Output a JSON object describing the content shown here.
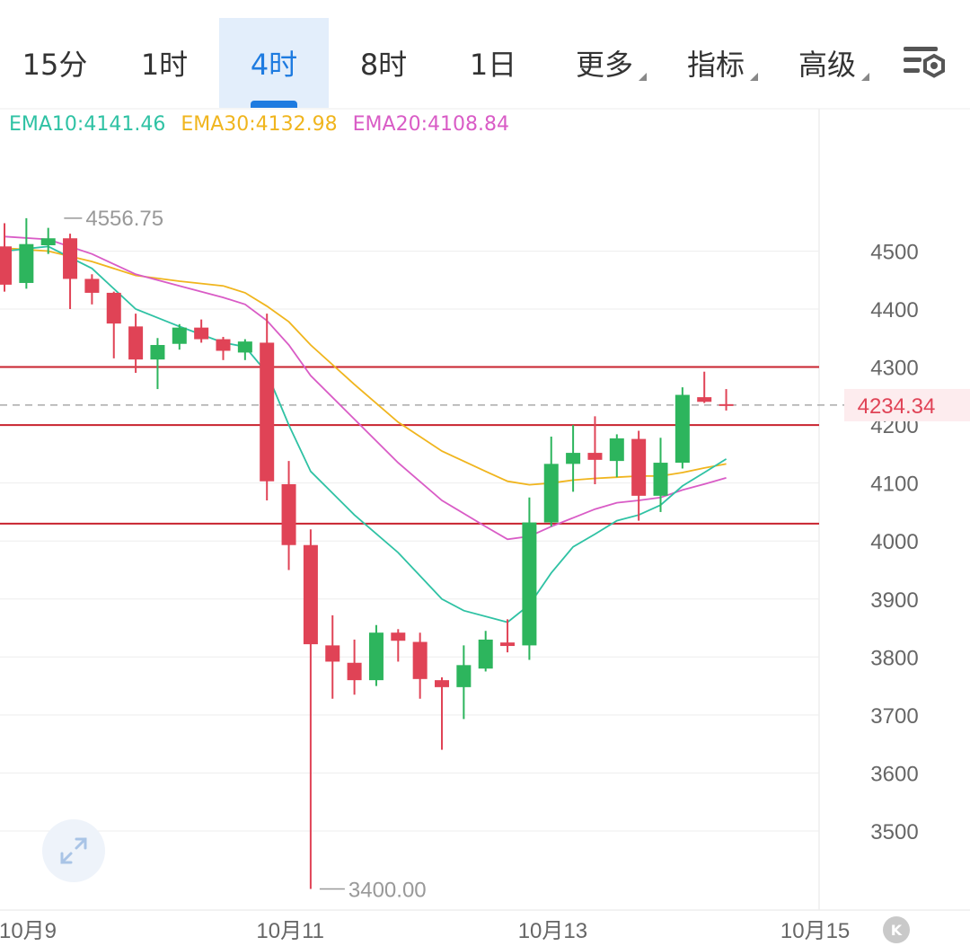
{
  "toolbar": {
    "tabs": [
      {
        "label": "15分",
        "active": false
      },
      {
        "label": "1时",
        "active": false
      },
      {
        "label": "4时",
        "active": true
      },
      {
        "label": "8时",
        "active": false
      },
      {
        "label": "1日",
        "active": false
      },
      {
        "label": "更多",
        "active": false,
        "dropdown": true
      },
      {
        "label": "指标",
        "active": false,
        "dropdown": true
      },
      {
        "label": "高级",
        "active": false,
        "dropdown": true
      }
    ],
    "settings_icon": "chart-settings-icon"
  },
  "legend": {
    "ema10": "EMA10:4141.46",
    "ema30": "EMA30:4132.98",
    "ema20": "EMA20:4108.84"
  },
  "chart_data": {
    "type": "candlestick",
    "y_ticks": [
      3500,
      3600,
      3700,
      3800,
      3900,
      4000,
      4100,
      4200,
      4300,
      4400,
      4500
    ],
    "ylim": [
      3380,
      4620
    ],
    "x_tick_labels": [
      {
        "label": "10月9",
        "index": 0
      },
      {
        "label": "10月11",
        "index": 12
      },
      {
        "label": "10月13",
        "index": 24
      },
      {
        "label": "10月15",
        "index": 36
      }
    ],
    "current_price": "4234.34",
    "high_label": "4556.75",
    "low_label": "3400.00",
    "horizontal_lines": [
      4300,
      4200,
      4030
    ],
    "colors": {
      "up": "#2db55d",
      "down": "#e04356",
      "ema10": "#2fc2a4",
      "ema30": "#f0b51e",
      "ema20": "#d95cc6",
      "hline": "#c8222e",
      "price_label": "#e04356"
    },
    "candles": [
      {
        "o": 4508,
        "h": 4548,
        "l": 4430,
        "c": 4442
      },
      {
        "o": 4445,
        "h": 4556.75,
        "l": 4435,
        "c": 4512
      },
      {
        "o": 4510,
        "h": 4540,
        "l": 4495,
        "c": 4522
      },
      {
        "o": 4522,
        "h": 4530,
        "l": 4400,
        "c": 4452
      },
      {
        "o": 4452,
        "h": 4460,
        "l": 4408,
        "c": 4428
      },
      {
        "o": 4428,
        "h": 4430,
        "l": 4315,
        "c": 4375
      },
      {
        "o": 4370,
        "h": 4392,
        "l": 4290,
        "c": 4313
      },
      {
        "o": 4313,
        "h": 4350,
        "l": 4262,
        "c": 4338
      },
      {
        "o": 4340,
        "h": 4374,
        "l": 4330,
        "c": 4368
      },
      {
        "o": 4368,
        "h": 4382,
        "l": 4342,
        "c": 4348
      },
      {
        "o": 4348,
        "h": 4352,
        "l": 4312,
        "c": 4328
      },
      {
        "o": 4325,
        "h": 4348,
        "l": 4312,
        "c": 4344
      },
      {
        "o": 4342,
        "h": 4392,
        "l": 4070,
        "c": 4103
      },
      {
        "o": 4098,
        "h": 4138,
        "l": 3950,
        "c": 3993
      },
      {
        "o": 3993,
        "h": 4020,
        "l": 3400,
        "c": 3822
      },
      {
        "o": 3820,
        "h": 3872,
        "l": 3728,
        "c": 3792
      },
      {
        "o": 3790,
        "h": 3830,
        "l": 3735,
        "c": 3760
      },
      {
        "o": 3760,
        "h": 3855,
        "l": 3750,
        "c": 3842
      },
      {
        "o": 3842,
        "h": 3848,
        "l": 3792,
        "c": 3828
      },
      {
        "o": 3826,
        "h": 3842,
        "l": 3728,
        "c": 3762
      },
      {
        "o": 3760,
        "h": 3765,
        "l": 3640,
        "c": 3748
      },
      {
        "o": 3748,
        "h": 3820,
        "l": 3693,
        "c": 3786
      },
      {
        "o": 3780,
        "h": 3845,
        "l": 3775,
        "c": 3830
      },
      {
        "o": 3825,
        "h": 3865,
        "l": 3808,
        "c": 3819
      },
      {
        "o": 3820,
        "h": 4075,
        "l": 3795,
        "c": 4032
      },
      {
        "o": 4032,
        "h": 4180,
        "l": 4025,
        "c": 4133
      },
      {
        "o": 4133,
        "h": 4200,
        "l": 4085,
        "c": 4152
      },
      {
        "o": 4152,
        "h": 4215,
        "l": 4098,
        "c": 4140
      },
      {
        "o": 4138,
        "h": 4184,
        "l": 4110,
        "c": 4177
      },
      {
        "o": 4176,
        "h": 4190,
        "l": 4035,
        "c": 4078
      },
      {
        "o": 4078,
        "h": 4178,
        "l": 4050,
        "c": 4135
      },
      {
        "o": 4135,
        "h": 4265,
        "l": 4125,
        "c": 4252
      },
      {
        "o": 4248,
        "h": 4292,
        "l": 4238,
        "c": 4240
      },
      {
        "o": 4236,
        "h": 4262,
        "l": 4225,
        "c": 4234.34
      }
    ],
    "ema10": [
      [
        0,
        4500
      ],
      [
        2,
        4508
      ],
      [
        4,
        4470
      ],
      [
        6,
        4400
      ],
      [
        8,
        4370
      ],
      [
        10,
        4342
      ],
      [
        11,
        4335
      ],
      [
        12,
        4290
      ],
      [
        13,
        4200
      ],
      [
        14,
        4120
      ],
      [
        16,
        4045
      ],
      [
        18,
        3980
      ],
      [
        20,
        3900
      ],
      [
        21,
        3880
      ],
      [
        23,
        3860
      ],
      [
        24,
        3890
      ],
      [
        25,
        3945
      ],
      [
        26,
        3990
      ],
      [
        27,
        4012
      ],
      [
        28,
        4035
      ],
      [
        29,
        4045
      ],
      [
        30,
        4062
      ],
      [
        31,
        4095
      ],
      [
        32,
        4118
      ],
      [
        33,
        4141.46
      ]
    ],
    "ema30": [
      [
        0,
        4505
      ],
      [
        2,
        4500
      ],
      [
        4,
        4482
      ],
      [
        6,
        4458
      ],
      [
        8,
        4448
      ],
      [
        10,
        4440
      ],
      [
        11,
        4428
      ],
      [
        12,
        4405
      ],
      [
        13,
        4378
      ],
      [
        14,
        4338
      ],
      [
        16,
        4270
      ],
      [
        18,
        4205
      ],
      [
        20,
        4155
      ],
      [
        22,
        4120
      ],
      [
        23,
        4103
      ],
      [
        24,
        4097
      ],
      [
        25,
        4100
      ],
      [
        26,
        4105
      ],
      [
        27,
        4108
      ],
      [
        28,
        4110
      ],
      [
        29,
        4112
      ],
      [
        30,
        4112
      ],
      [
        31,
        4118
      ],
      [
        32,
        4126
      ],
      [
        33,
        4132.98
      ]
    ],
    "ema20": [
      [
        0,
        4525
      ],
      [
        2,
        4520
      ],
      [
        4,
        4495
      ],
      [
        6,
        4460
      ],
      [
        8,
        4440
      ],
      [
        10,
        4420
      ],
      [
        11,
        4408
      ],
      [
        12,
        4380
      ],
      [
        13,
        4338
      ],
      [
        14,
        4285
      ],
      [
        16,
        4210
      ],
      [
        18,
        4135
      ],
      [
        20,
        4070
      ],
      [
        22,
        4025
      ],
      [
        23,
        4003
      ],
      [
        24,
        4008
      ],
      [
        25,
        4025
      ],
      [
        26,
        4040
      ],
      [
        27,
        4055
      ],
      [
        28,
        4066
      ],
      [
        29,
        4070
      ],
      [
        30,
        4075
      ],
      [
        31,
        4088
      ],
      [
        32,
        4098
      ],
      [
        33,
        4108.84
      ]
    ]
  },
  "controls": {
    "expand_icon": "expand-icon",
    "k_label": "K"
  }
}
